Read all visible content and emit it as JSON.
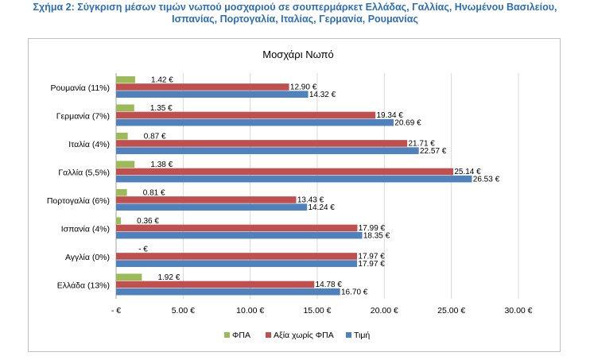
{
  "figure": {
    "title_line1": "Σχήμα 2: Σύγκριση μέσων τιμών νωπού μοσχαριού σε σουπερμάρκετ Ελλάδας, Γαλλίας, Ηνωμένου Βασιλείου,",
    "title_line2": "Ισπανίας, Πορτογαλία, Ιταλίας, Γερμανία, Ρουμανίας"
  },
  "chart_data": {
    "type": "bar",
    "orientation": "horizontal",
    "title": "Μοσχάρι Νωπό",
    "categories": [
      "Ρουμανία (11%)",
      "Γερμανία (7%)",
      "Ιταλία (4%)",
      "Γαλλία (5,5%)",
      "Πορτογαλία (6%)",
      "Ισπανία (4%)",
      "Αγγλία (0%)",
      "Ελλάδα (13%)"
    ],
    "series": [
      {
        "name": "ΦΠΑ",
        "color": "#9bbb59",
        "values": [
          1.42,
          1.35,
          0.87,
          1.38,
          0.81,
          0.36,
          0,
          1.92
        ],
        "labels": [
          "1.42 €",
          "1.35 €",
          "0.87 €",
          "1.38 €",
          "0.81 €",
          "0.36 €",
          "-   €",
          "1.92 €"
        ]
      },
      {
        "name": "Αξία χωρίς ΦΠΑ",
        "color": "#c0504d",
        "values": [
          12.9,
          19.34,
          21.71,
          25.14,
          13.43,
          17.99,
          17.97,
          14.78
        ],
        "labels": [
          "12.90 €",
          "19.34 €",
          "21.71 €",
          "25.14 €",
          "13.43 €",
          "17.99 €",
          "17.97 €",
          "14.78 €"
        ]
      },
      {
        "name": "Τιμή",
        "color": "#4f81bd",
        "values": [
          14.32,
          20.69,
          22.57,
          26.53,
          14.24,
          18.35,
          17.97,
          16.7
        ],
        "labels": [
          "14.32 €",
          "20.69 €",
          "22.57 €",
          "26.53 €",
          "14.24 €",
          "18.35 €",
          "17.97 €",
          "16.70 €"
        ]
      }
    ],
    "xlim": [
      0,
      30
    ],
    "x_ticks": [
      0,
      5,
      10,
      15,
      20,
      25,
      30
    ],
    "x_tick_labels": [
      "-    €",
      "5.00 €",
      "10.00 €",
      "15.00 €",
      "20.00 €",
      "25.00 €",
      "30.00 €"
    ],
    "grid": true,
    "legend_position": "bottom"
  }
}
